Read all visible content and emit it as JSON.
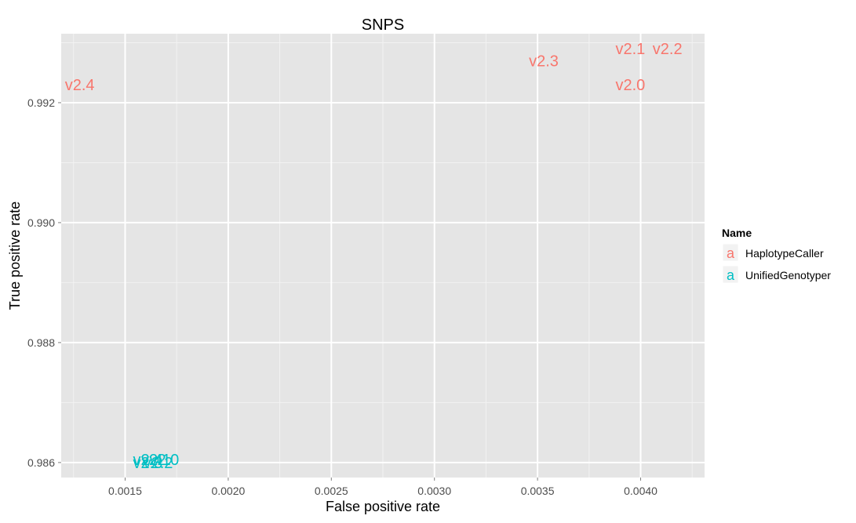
{
  "chart_data": {
    "type": "scatter",
    "title": "SNPS",
    "xlabel": "False positive rate",
    "ylabel": "True positive rate",
    "xlim": [
      0.00119,
      0.00431
    ],
    "ylim": [
      0.98575,
      0.99315
    ],
    "x_ticks": [
      0.0015,
      0.002,
      0.0025,
      0.003,
      0.0035,
      0.004
    ],
    "x_tick_labels": [
      "0.0015",
      "0.0020",
      "0.0025",
      "0.0030",
      "0.0035",
      "0.0040"
    ],
    "y_ticks": [
      0.986,
      0.988,
      0.99,
      0.992
    ],
    "y_tick_labels": [
      "0.986",
      "0.988",
      "0.990",
      "0.992"
    ],
    "grid": true,
    "legend": {
      "title": "Name",
      "placement": "right",
      "glyph": "a"
    },
    "series": [
      {
        "name": "HaplotypeCaller",
        "color": "#F8766D",
        "points": [
          {
            "x": 0.00128,
            "y": 0.9923,
            "label": "v2.4"
          },
          {
            "x": 0.00353,
            "y": 0.9927,
            "label": "v2.3"
          },
          {
            "x": 0.00395,
            "y": 0.9929,
            "label": "v2.1"
          },
          {
            "x": 0.00413,
            "y": 0.9929,
            "label": "v2.2"
          },
          {
            "x": 0.00395,
            "y": 0.9923,
            "label": "v2.0"
          }
        ]
      },
      {
        "name": "UnifiedGenotyper",
        "color": "#00BFC4",
        "points": [
          {
            "x": 0.00161,
            "y": 0.98605,
            "label": "v2.4"
          },
          {
            "x": 0.00169,
            "y": 0.98605,
            "label": "v2.0"
          },
          {
            "x": 0.00165,
            "y": 0.98605,
            "label": "v2.1"
          },
          {
            "x": 0.00161,
            "y": 0.986,
            "label": "v2.3"
          },
          {
            "x": 0.00166,
            "y": 0.986,
            "label": "v2.2"
          }
        ]
      }
    ]
  }
}
